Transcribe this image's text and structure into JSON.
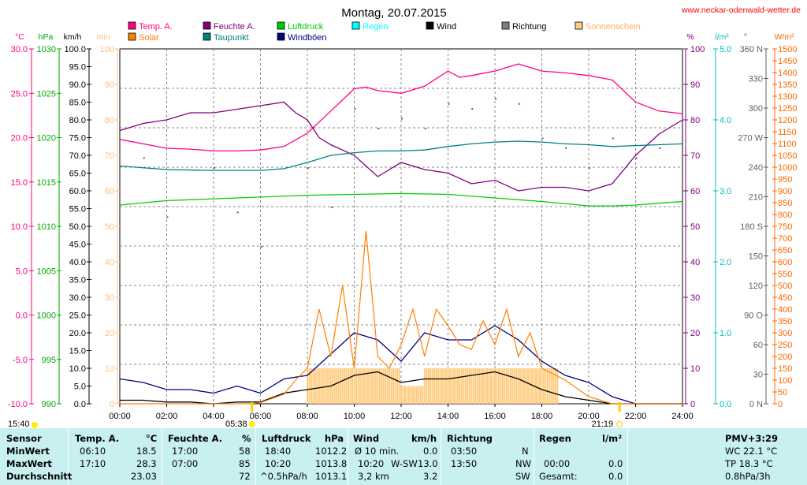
{
  "colors": {
    "temp": "#ff0080",
    "feuchte": "#800080",
    "luftdruck": "#00cc00",
    "regen": "#00ffff",
    "wind": "#000000",
    "richtung": "#808080",
    "sonne": "#ffcc80",
    "solar": "#ff8000",
    "taupunkt": "#008080",
    "windboeen": "#000080"
  },
  "chart_data": {
    "type": "line",
    "title": "Montag, 20.07.2015",
    "site": "www.neckar-odenwald-wetter.de",
    "legend": [
      {
        "key": "temp",
        "label": "Temp. A."
      },
      {
        "key": "feuchte",
        "label": "Feuchte A."
      },
      {
        "key": "luftdruck",
        "label": "Luftdruck"
      },
      {
        "key": "regen",
        "label": "Regen"
      },
      {
        "key": "wind",
        "label": "Wind"
      },
      {
        "key": "richtung",
        "label": "Richtung"
      },
      {
        "key": "sonne",
        "label": "Sonnenschein"
      },
      {
        "key": "solar",
        "label": "Solar"
      },
      {
        "key": "taupunkt",
        "label": "Taupunkt"
      },
      {
        "key": "windboeen",
        "label": "Windböen"
      }
    ],
    "axes": {
      "temp": {
        "unit": "°C",
        "ticks": [
          "30.0",
          "25.0",
          "20.0",
          "15.0",
          "10.0",
          "5.0",
          "0.0",
          "-5.0",
          "-10.0"
        ]
      },
      "hpa": {
        "unit": "hPa",
        "ticks": [
          "1030",
          "1025",
          "1020",
          "1015",
          "1010",
          "1005",
          "1000",
          "995",
          "990"
        ]
      },
      "kmh": {
        "unit": "km/h",
        "ticks": [
          "100.0",
          "95.0",
          "90.0",
          "85.0",
          "80.0",
          "75.0",
          "70.0",
          "65.0",
          "60.0",
          "55.0",
          "50.0",
          "45.0",
          "40.0",
          "35.0",
          "30.0",
          "25.0",
          "20.0",
          "15.0",
          "10.0",
          "5.0",
          "0.0"
        ]
      },
      "min": {
        "unit": "min",
        "ticks": [
          "100",
          "90",
          "80",
          "70",
          "60",
          "50",
          "40",
          "30",
          "20",
          "10",
          "0"
        ]
      },
      "pct": {
        "unit": "%",
        "ticks": [
          "100",
          "90",
          "80",
          "70",
          "60",
          "50",
          "40",
          "30",
          "20",
          "10",
          "0"
        ]
      },
      "rain": {
        "unit": "l/m²",
        "ticks": [
          "5.0",
          "4.0",
          "3.0",
          "2.0",
          "1.0",
          "0.0"
        ]
      },
      "dir": {
        "unit": "°",
        "ticks": [
          "360 N",
          "330",
          "300",
          "270 W",
          "240",
          "210",
          "180 S",
          "150",
          "120",
          "90 O",
          "60",
          "30",
          "0 N"
        ]
      },
      "wm2": {
        "unit": "W/m²",
        "ticks": [
          "1500",
          "1450",
          "1400",
          "1350",
          "1300",
          "1250",
          "1200",
          "1150",
          "1100",
          "1050",
          "1000",
          "950",
          "900",
          "850",
          "800",
          "750",
          "700",
          "650",
          "600",
          "550",
          "500",
          "450",
          "400",
          "350",
          "300",
          "250",
          "200",
          "150",
          "100",
          "50",
          "0"
        ]
      }
    },
    "x_ticks": [
      "00:00",
      "02:00",
      "04:00",
      "06:00",
      "08:00",
      "10:00",
      "12:00",
      "14:00",
      "16:00",
      "18:00",
      "20:00",
      "22:00",
      "24:00"
    ],
    "sunrise": "05:38",
    "sunset": "21:19",
    "start": "15:40",
    "series": [
      {
        "name": "Temp. A.",
        "key": "temp",
        "unit": "°C",
        "x": [
          0,
          1,
          2,
          3,
          4,
          5,
          6,
          7,
          8,
          9,
          10,
          10.5,
          11,
          12,
          13,
          14,
          14.5,
          15,
          16,
          17,
          18,
          19,
          20,
          21,
          22,
          23,
          24
        ],
        "y": [
          19.8,
          19.3,
          18.8,
          18.7,
          18.5,
          18.5,
          18.6,
          19.0,
          20.5,
          23.0,
          25.5,
          25.7,
          25.3,
          25.0,
          25.8,
          27.5,
          26.8,
          27.0,
          27.5,
          28.3,
          27.5,
          27.3,
          27.0,
          26.5,
          24.0,
          23.0,
          22.7
        ]
      },
      {
        "name": "Feuchte A.",
        "key": "feuchte",
        "unit": "%",
        "x": [
          0,
          1,
          2,
          3,
          4,
          5,
          6,
          7,
          7.5,
          8,
          8.5,
          9,
          10,
          11,
          12,
          13,
          14,
          15,
          16,
          17,
          18,
          19,
          20,
          21,
          22,
          23,
          24
        ],
        "y": [
          77,
          79,
          80,
          82,
          82,
          83,
          84,
          85,
          82,
          80,
          75,
          73,
          70,
          64,
          68,
          66,
          65,
          62,
          63,
          60,
          61,
          61,
          60,
          62,
          70,
          76,
          80
        ]
      },
      {
        "name": "Luftdruck",
        "key": "luftdruck",
        "unit": "hPa",
        "x": [
          0,
          2,
          4,
          6,
          8,
          10,
          12,
          14,
          16,
          18,
          20,
          21,
          22,
          23,
          24
        ],
        "y": [
          1012.4,
          1012.9,
          1013.1,
          1013.3,
          1013.5,
          1013.6,
          1013.7,
          1013.6,
          1013.2,
          1012.8,
          1012.3,
          1012.3,
          1012.4,
          1012.6,
          1012.8
        ]
      },
      {
        "name": "Taupunkt",
        "key": "taupunkt",
        "unit": "°C",
        "x": [
          0,
          2,
          4,
          6,
          7,
          8,
          9,
          10,
          11,
          12,
          13,
          14,
          15,
          16,
          17,
          18,
          19,
          20,
          21,
          22,
          23,
          24
        ],
        "y": [
          16.8,
          16.4,
          16.3,
          16.3,
          16.5,
          17.2,
          18.0,
          18.3,
          18.5,
          18.5,
          18.6,
          19.0,
          19.3,
          19.5,
          19.6,
          19.5,
          19.3,
          19.2,
          19.0,
          19.1,
          19.2,
          19.3
        ]
      },
      {
        "name": "Windböen",
        "key": "windboeen",
        "unit": "km/h",
        "x": [
          0,
          1,
          2,
          3,
          4,
          5,
          6,
          7,
          8,
          9,
          10,
          11,
          12,
          13,
          14,
          15,
          16,
          17,
          18,
          19,
          20,
          21,
          22,
          23,
          24
        ],
        "y": [
          7,
          6,
          4,
          4,
          3,
          5,
          3,
          7,
          8,
          14,
          20,
          18,
          12,
          20,
          18,
          18,
          22,
          18,
          12,
          8,
          6,
          2,
          0,
          0,
          0
        ]
      },
      {
        "name": "Wind",
        "key": "wind",
        "unit": "km/h",
        "x": [
          0,
          1,
          2,
          3,
          4,
          5,
          6,
          7,
          8,
          9,
          10,
          11,
          12,
          13,
          14,
          15,
          16,
          17,
          18,
          19,
          20,
          21,
          22,
          23,
          24
        ],
        "y": [
          1,
          1,
          0.5,
          0.5,
          0,
          0.5,
          0.5,
          3,
          4,
          5,
          8,
          9,
          6,
          7,
          7,
          8,
          9,
          7,
          4,
          2,
          1,
          0,
          0,
          0,
          0
        ]
      },
      {
        "name": "Solar",
        "key": "solar",
        "unit": "W/m²",
        "x": [
          0,
          5.6,
          6,
          7,
          7.5,
          8,
          8.5,
          9,
          9.5,
          10,
          10.5,
          11,
          11.5,
          12,
          12.5,
          13,
          13.5,
          14,
          14.5,
          15,
          15.5,
          16,
          16.5,
          17,
          17.5,
          18,
          19,
          20,
          21,
          21.3,
          24
        ],
        "y": [
          0,
          0,
          5,
          40,
          100,
          150,
          400,
          200,
          500,
          150,
          730,
          200,
          150,
          250,
          400,
          200,
          400,
          330,
          250,
          230,
          350,
          250,
          400,
          200,
          300,
          150,
          100,
          30,
          0,
          0,
          0
        ]
      },
      {
        "name": "Sonnenschein",
        "key": "sonne",
        "unit": "min",
        "x": [
          8,
          9,
          10,
          11,
          12,
          13,
          14,
          15,
          16,
          17,
          18
        ],
        "y": [
          10,
          10,
          10,
          10,
          5,
          10,
          10,
          10,
          10,
          10,
          10
        ]
      },
      {
        "name": "Richtung",
        "key": "richtung",
        "unit": "°",
        "x": [
          1,
          2,
          4,
          5,
          6,
          8,
          9,
          10,
          11,
          12,
          13,
          14,
          15,
          16,
          17,
          18,
          19,
          20,
          21,
          22,
          23
        ],
        "y": [
          250,
          190,
          240,
          195,
          160,
          240,
          200,
          300,
          280,
          290,
          280,
          305,
          300,
          310,
          305,
          270,
          260,
          240,
          270,
          250,
          260
        ]
      }
    ]
  },
  "stats": {
    "header": {
      "sensor": "Sensor",
      "temp": "Temp. A.",
      "temp_unit": "°C",
      "feuchte": "Feuchte A.",
      "feuchte_unit": "%",
      "luftdruck": "Luftdruck",
      "luftdruck_unit": "hPa",
      "wind": "Wind",
      "wind_unit": "km/h",
      "richtung": "Richtung",
      "regen": "Regen",
      "regen_unit": "l/m²",
      "pmv": "PMV+3:29"
    },
    "min": {
      "label": "MinWert",
      "temp_time": "06:10",
      "temp_val": "18.5",
      "feuchte_time": "17:00",
      "feuchte_val": "58",
      "lp_time": "18:40",
      "lp_val": "1012.2",
      "wind_time": "Ø 10 min.",
      "wind_val": "0.0",
      "dir_time": "03:50",
      "dir_val": "N",
      "wc": "WC 22.1 °C"
    },
    "max": {
      "label": "MaxWert",
      "temp_time": "17:10",
      "temp_val": "28.3",
      "feuchte_time": "07:00",
      "feuchte_val": "85",
      "lp_time": "10:20",
      "lp_val": "1013.8",
      "wind_time": "10:20",
      "wind_dir": "W-SW",
      "wind_val": "13.0",
      "dir_time": "13:50",
      "dir_val": "NW",
      "rain_time": "00:00",
      "rain_val": "0.0",
      "tp": "TP 18.3 °C"
    },
    "avg": {
      "label": "Durchschnitt",
      "temp_val": "23.03",
      "feuchte_val": "72",
      "lp_trend": "^0.5hPa/h",
      "lp_val": "1013.1",
      "wind_dist": "3,2 km",
      "wind_val": "3.2",
      "dir_val": "SW",
      "rain_label": "Gesamt:",
      "rain_val": "0.0",
      "trend": "0.8hPa/3h"
    }
  }
}
